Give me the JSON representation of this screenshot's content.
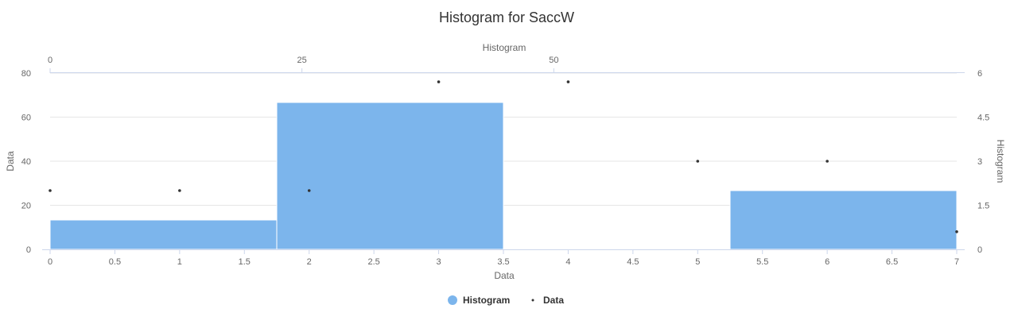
{
  "chart_data": {
    "type": "histogram+scatter",
    "title": "Histogram for SaccW",
    "x_axis": {
      "title": "Data",
      "min": 0,
      "max": 7,
      "ticks": [
        0,
        0.5,
        1,
        1.5,
        2,
        2.5,
        3,
        3.5,
        4,
        4.5,
        5,
        5.5,
        6,
        6.5,
        7
      ]
    },
    "y_axis_left": {
      "title": "Data",
      "min": 0,
      "max": 80,
      "ticks": [
        0,
        20,
        40,
        60,
        80
      ]
    },
    "x_axis_top": {
      "title": "Histogram",
      "min": 0,
      "max": 90,
      "ticks": [
        0,
        25,
        50
      ]
    },
    "y_axis_right": {
      "title": "Histogram",
      "min": 0,
      "max": 6,
      "ticks": [
        0,
        1.5,
        3,
        4.5,
        6
      ]
    },
    "histogram": {
      "name": "Histogram",
      "color": "#7cb5ec",
      "bins": [
        {
          "x0": 0,
          "x1": 1.75,
          "y": 1
        },
        {
          "x0": 1.75,
          "x1": 3.5,
          "y": 5
        },
        {
          "x0": 3.5,
          "x1": 5.25,
          "y": 0
        },
        {
          "x0": 5.25,
          "x1": 7,
          "y": 2
        }
      ]
    },
    "scatter": {
      "name": "Data",
      "color": "#333333",
      "points": [
        {
          "x": 0,
          "y": 2
        },
        {
          "x": 1,
          "y": 2
        },
        {
          "x": 2,
          "y": 2
        },
        {
          "x": 3,
          "y": 5.7
        },
        {
          "x": 4,
          "y": 5.7
        },
        {
          "x": 5,
          "y": 3
        },
        {
          "x": 6,
          "y": 3
        },
        {
          "x": 7,
          "y": 0.6
        }
      ]
    },
    "legend": {
      "placement": "bottom-center",
      "items": [
        "Histogram",
        "Data"
      ]
    }
  }
}
